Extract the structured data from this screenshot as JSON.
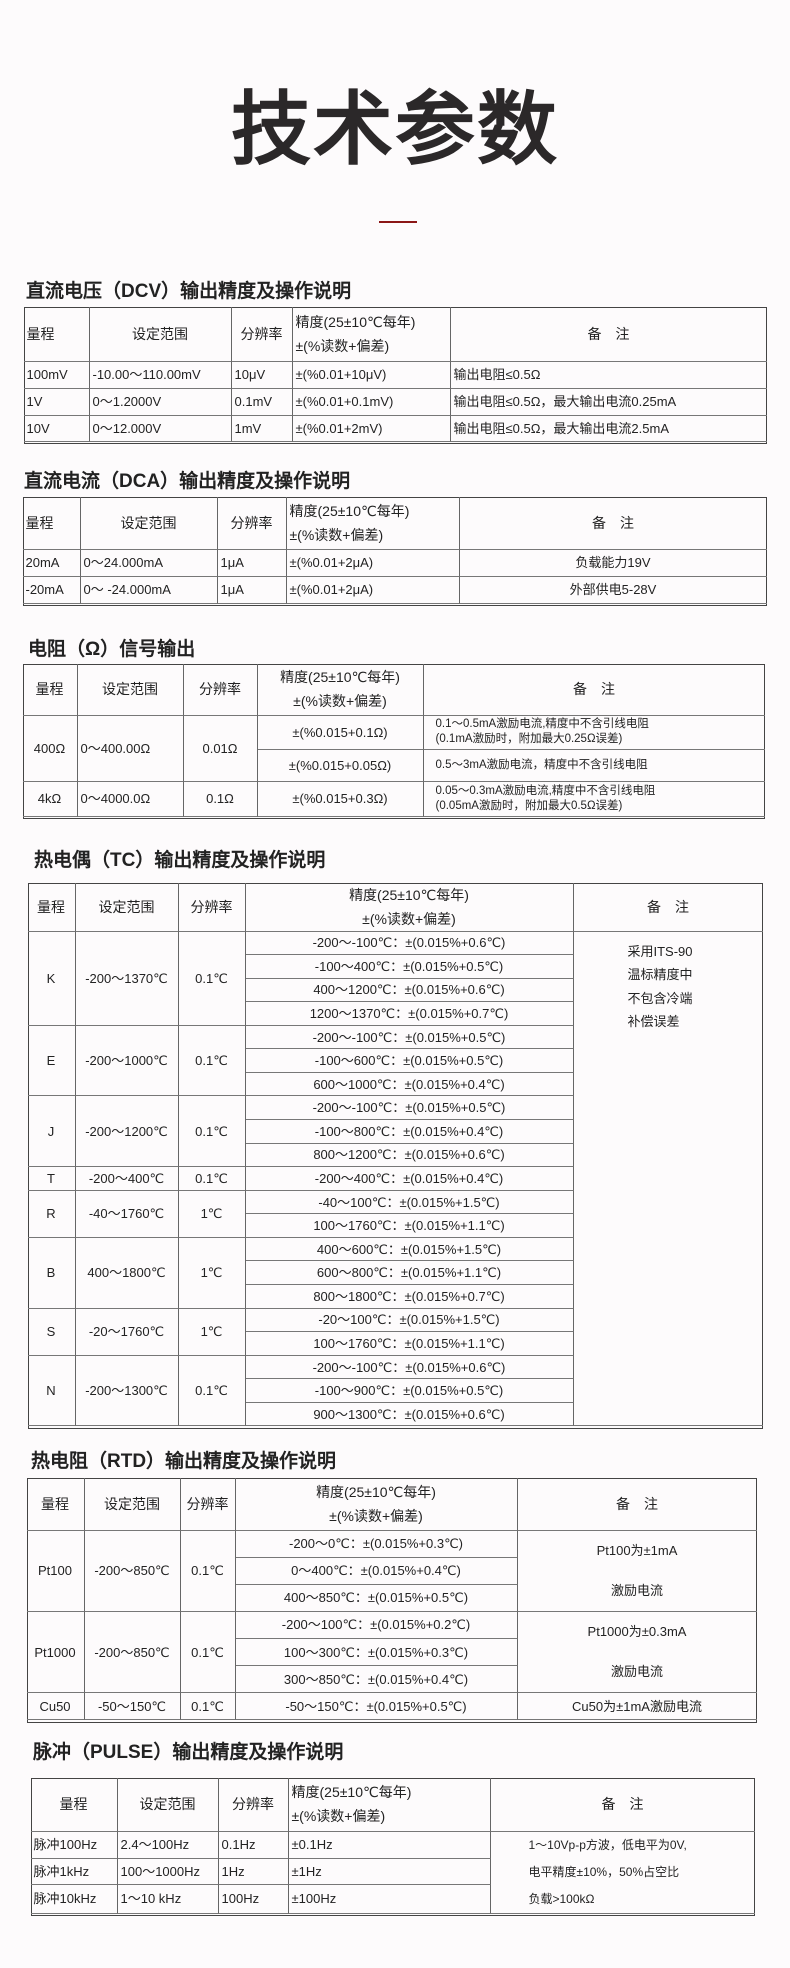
{
  "page": {
    "title": "技术参数",
    "accent_color": "#8b1616"
  },
  "headers": {
    "range": "量程",
    "set_range": "设定范围",
    "resolution": "分辨率",
    "accuracy_line1": "精度(25±10℃每年)",
    "accuracy_line2": "±(%读数+偏差)",
    "note": "备　注"
  },
  "sections": [
    {
      "id": "dcv",
      "title": "直流电压（DCV）输出精度及操作说明",
      "groups": [
        {
          "range": "100mV",
          "set_range": "-10.00～110.00mV",
          "resolution": "10μV",
          "accuracy": [
            "±(%0.01+10μV)"
          ],
          "sub_notes": [
            [
              "输出电阻≤0.5Ω"
            ]
          ]
        },
        {
          "range": "1V",
          "set_range": "0～1.2000V",
          "resolution": "0.1mV",
          "accuracy": [
            "±(%0.01+0.1mV)"
          ],
          "sub_notes": [
            [
              "输出电阻≤0.5Ω，最大输出电流0.25mA"
            ]
          ]
        },
        {
          "range": "10V",
          "set_range": "0～12.000V",
          "resolution": "1mV",
          "accuracy": [
            "±(%0.01+2mV)"
          ],
          "sub_notes": [
            [
              "输出电阻≤0.5Ω，最大输出电流2.5mA"
            ]
          ]
        }
      ]
    },
    {
      "id": "dca",
      "title": "直流电流（DCA）输出精度及操作说明",
      "groups": [
        {
          "range": "20mA",
          "set_range": "0～24.000mA",
          "resolution": "1μA",
          "accuracy": [
            "±(%0.01+2μA)"
          ],
          "sub_notes": [
            [
              "负载能力19V"
            ]
          ]
        },
        {
          "range": "-20mA",
          "set_range": "0～ -24.000mA",
          "resolution": "1μA",
          "accuracy": [
            "±(%0.01+2μA)"
          ],
          "sub_notes": [
            [
              "外部供电5-28V"
            ]
          ]
        }
      ]
    },
    {
      "id": "ohm",
      "title": "电阻（Ω）信号输出",
      "groups": [
        {
          "range": "400Ω",
          "set_range": "0～400.00Ω",
          "resolution": "0.01Ω",
          "accuracy": [
            "±(%0.015+0.1Ω)",
            "±(%0.015+0.05Ω)"
          ],
          "sub_notes": [
            [
              "0.1～0.5mA激励电流,精度中不含引线电阻",
              "(0.1mA激励时，附加最大0.25Ω误差)"
            ],
            [
              "0.5～3mA激励电流，精度中不含引线电阻"
            ]
          ]
        },
        {
          "range": "4kΩ",
          "set_range": "0～4000.0Ω",
          "resolution": "0.1Ω",
          "accuracy": [
            "±(%0.015+0.3Ω)"
          ],
          "sub_notes": [
            [
              "0.05～0.3mA激励电流,精度中不含引线电阻",
              "(0.05mA激励时，附加最大0.5Ω误差)"
            ]
          ]
        }
      ]
    },
    {
      "id": "tc",
      "title": "热电偶（TC）输出精度及操作说明",
      "note": [
        "采用ITS-90",
        "温标精度中",
        "不包含冷端",
        "补偿误差"
      ],
      "groups": [
        {
          "range": "K",
          "set_range": "-200～1370℃",
          "resolution": "0.1℃",
          "accuracy": [
            "-200～-100℃：±(0.015%+0.6℃)",
            "-100～400℃：±(0.015%+0.5℃)",
            "400～1200℃：±(0.015%+0.6℃)",
            "1200～1370℃：±(0.015%+0.7℃)"
          ]
        },
        {
          "range": "E",
          "set_range": "-200～1000℃",
          "resolution": "0.1℃",
          "accuracy": [
            "-200～-100℃：±(0.015%+0.5℃)",
            "-100～600℃：±(0.015%+0.5℃)",
            "600～1000℃：±(0.015%+0.4℃)"
          ]
        },
        {
          "range": "J",
          "set_range": "-200～1200℃",
          "resolution": "0.1℃",
          "accuracy": [
            "-200～-100℃：±(0.015%+0.5℃)",
            "-100～800℃：±(0.015%+0.4℃)",
            "800～1200℃：±(0.015%+0.6℃)"
          ]
        },
        {
          "range": "T",
          "set_range": "-200～400℃",
          "resolution": "0.1℃",
          "accuracy": [
            "-200～400℃：±(0.015%+0.4℃)"
          ]
        },
        {
          "range": "R",
          "set_range": "-40～1760℃",
          "resolution": "1℃",
          "accuracy": [
            "-40～100℃：±(0.015%+1.5℃)",
            "100～1760℃：±(0.015%+1.1℃)"
          ]
        },
        {
          "range": "B",
          "set_range": "400～1800℃",
          "resolution": "1℃",
          "accuracy": [
            "400～600℃：±(0.015%+1.5℃)",
            "600～800℃：±(0.015%+1.1℃)",
            "800～1800℃：±(0.015%+0.7℃)"
          ]
        },
        {
          "range": "S",
          "set_range": "-20～1760℃",
          "resolution": "1℃",
          "accuracy": [
            "-20～100℃：±(0.015%+1.5℃)",
            "100～1760℃：±(0.015%+1.1℃)"
          ]
        },
        {
          "range": "N",
          "set_range": "-200～1300℃",
          "resolution": "0.1℃",
          "accuracy": [
            "-200～-100℃：±(0.015%+0.6℃)",
            "-100～900℃：±(0.015%+0.5℃)",
            "900～1300℃：±(0.015%+0.6℃)"
          ]
        }
      ]
    },
    {
      "id": "rtd",
      "title": "热电阻（RTD）输出精度及操作说明",
      "groups": [
        {
          "range": "Pt100",
          "set_range": "-200～850℃",
          "resolution": "0.1℃",
          "accuracy": [
            "-200～0℃：±(0.015%+0.3℃)",
            "0～400℃：±(0.015%+0.4℃)",
            "400～850℃：±(0.015%+0.5℃)"
          ],
          "note": [
            "Pt100为±1mA",
            "激励电流"
          ]
        },
        {
          "range": "Pt1000",
          "set_range": "-200～850℃",
          "resolution": "0.1℃",
          "accuracy": [
            "-200～100℃：±(0.015%+0.2℃)",
            "100～300℃：±(0.015%+0.3℃)",
            "300～850℃：±(0.015%+0.4℃)"
          ],
          "note": [
            "Pt1000为±0.3mA",
            "激励电流"
          ]
        },
        {
          "range": "Cu50",
          "set_range": "-50～150℃",
          "resolution": "0.1℃",
          "accuracy": [
            "-50～150℃：±(0.015%+0.5℃)"
          ],
          "note": [
            "Cu50为±1mA激励电流"
          ]
        }
      ]
    },
    {
      "id": "pulse",
      "title": "脉冲（PULSE）输出精度及操作说明",
      "note": [
        "1～10Vp-p方波，低电平为0V,",
        "电平精度±10%，50%占空比",
        "负载>100kΩ"
      ],
      "groups": [
        {
          "range": "脉冲100Hz",
          "set_range": "2.4～100Hz",
          "resolution": "0.1Hz",
          "accuracy": [
            "±0.1Hz"
          ]
        },
        {
          "range": "脉冲1kHz",
          "set_range": "100～1000Hz",
          "resolution": "1Hz",
          "accuracy": [
            "±1Hz"
          ]
        },
        {
          "range": "脉冲10kHz",
          "set_range": "1～10 kHz",
          "resolution": "100Hz",
          "accuracy": [
            "±100Hz"
          ]
        }
      ]
    }
  ]
}
